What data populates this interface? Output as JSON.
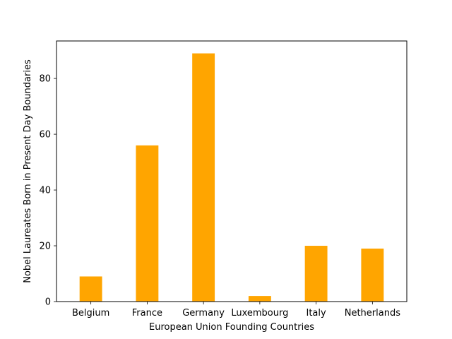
{
  "chart_data": {
    "type": "bar",
    "title": "",
    "xlabel": "European Union Founding Countries",
    "ylabel": "Nobel Laureates Born in Present Day Boundaries",
    "categories": [
      "Belgium",
      "France",
      "Germany",
      "Luxembourg",
      "Italy",
      "Netherlands"
    ],
    "values": [
      9,
      56,
      89,
      2,
      20,
      19
    ],
    "ylim": [
      0,
      93.45
    ],
    "yticks": [
      0,
      20,
      40,
      60,
      80
    ],
    "bar_color": "#ffa500",
    "grid": false,
    "legend": "none"
  }
}
